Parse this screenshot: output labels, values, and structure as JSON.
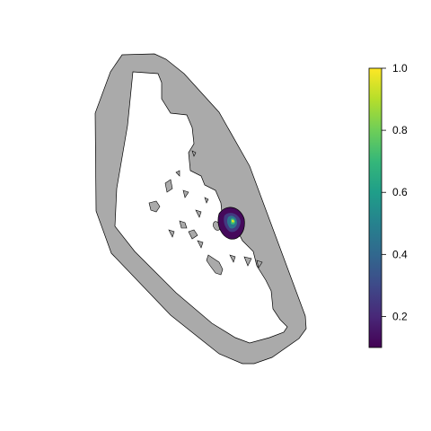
{
  "colors": {
    "background": "#ffffff",
    "buffer_fill": "#aaaaaa",
    "outline": "#000000",
    "palette": "viridis",
    "viridis_stops": [
      "#440154",
      "#482878",
      "#3e4a89",
      "#31688e",
      "#26828e",
      "#1f9e89",
      "#35b779",
      "#6ece58",
      "#b5de2b",
      "#fde725"
    ]
  },
  "legend": {
    "title": "",
    "range": [
      0.1,
      1.0
    ],
    "ticks": [
      {
        "value": 1.0,
        "label": "1.0"
      },
      {
        "value": 0.8,
        "label": "0.8"
      },
      {
        "value": 0.6,
        "label": "0.6"
      },
      {
        "value": 0.4,
        "label": "0.4"
      },
      {
        "value": 0.2,
        "label": "0.2"
      }
    ]
  },
  "heat_spot": {
    "values": [
      0.12,
      0.25,
      0.45,
      0.7,
      0.95
    ]
  }
}
